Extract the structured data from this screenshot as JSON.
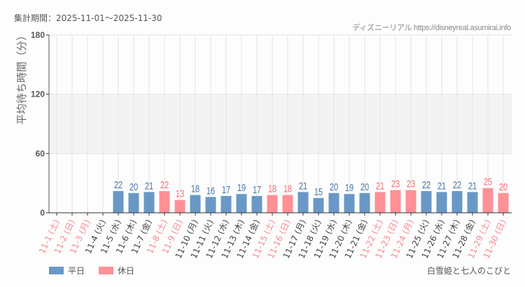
{
  "header": {
    "period_label": "集計期間：2025-11-01～2025-11-30",
    "source": "ディズニーリアル https://disneyreal.asumirai.info"
  },
  "footer": {
    "attraction": "白雪姫と七人のこびと"
  },
  "legend": [
    {
      "label": "平日",
      "color": "#6a98c6"
    },
    {
      "label": "休日",
      "color": "#ff9096"
    }
  ],
  "colors": {
    "weekday": "#6a98c6",
    "holiday": "#ff9096",
    "weekday_label": "#4a78aa",
    "holiday_label": "#f47078",
    "weekday_tick": "#444444",
    "holiday_tick": "#f78a90",
    "band": "#f3f3f3",
    "grid": "#e4e4e4"
  },
  "chart_data": {
    "type": "bar",
    "title": "集計期間：2025-11-01～2025-11-30",
    "xlabel": "",
    "ylabel": "平均待ち時間（分）",
    "ylim": [
      0,
      180
    ],
    "yticks": [
      0,
      60,
      120,
      180
    ],
    "grid": true,
    "legend_position": "bottom-left",
    "categories": [
      "11-1 (土)",
      "11-2 (日)",
      "11-3 (月)",
      "11-4 (火)",
      "11-5 (水)",
      "11-6 (木)",
      "11-7 (金)",
      "11-8 (土)",
      "11-9 (日)",
      "11-10 (月)",
      "11-11 (火)",
      "11-12 (水)",
      "11-13 (木)",
      "11-14 (金)",
      "11-15 (土)",
      "11-16 (日)",
      "11-17 (月)",
      "11-18 (火)",
      "11-19 (水)",
      "11-20 (木)",
      "11-21 (金)",
      "11-22 (土)",
      "11-23 (日)",
      "11-24 (月)",
      "11-25 (火)",
      "11-26 (水)",
      "11-27 (木)",
      "11-28 (金)",
      "11-29 (土)",
      "11-30 (日)"
    ],
    "values": [
      null,
      null,
      null,
      null,
      22,
      20,
      21,
      22,
      13,
      18,
      16,
      17,
      19,
      17,
      18,
      18,
      21,
      15,
      20,
      19,
      20,
      21,
      23,
      23,
      22,
      21,
      22,
      21,
      25,
      20
    ],
    "day_type": [
      "休日",
      "休日",
      "休日",
      "平日",
      "平日",
      "平日",
      "平日",
      "休日",
      "休日",
      "平日",
      "平日",
      "平日",
      "平日",
      "平日",
      "休日",
      "休日",
      "平日",
      "平日",
      "平日",
      "平日",
      "平日",
      "休日",
      "休日",
      "休日",
      "平日",
      "平日",
      "平日",
      "平日",
      "休日",
      "休日"
    ],
    "series": [
      {
        "name": "平日",
        "values": [
          null,
          null,
          null,
          null,
          22,
          20,
          21,
          null,
          null,
          18,
          16,
          17,
          19,
          17,
          null,
          null,
          21,
          15,
          20,
          19,
          20,
          null,
          null,
          null,
          22,
          21,
          22,
          21,
          null,
          null
        ]
      },
      {
        "name": "休日",
        "values": [
          null,
          null,
          null,
          null,
          null,
          null,
          null,
          22,
          13,
          null,
          null,
          null,
          null,
          null,
          18,
          18,
          null,
          null,
          null,
          null,
          null,
          21,
          23,
          23,
          null,
          null,
          null,
          null,
          25,
          20
        ]
      }
    ]
  }
}
